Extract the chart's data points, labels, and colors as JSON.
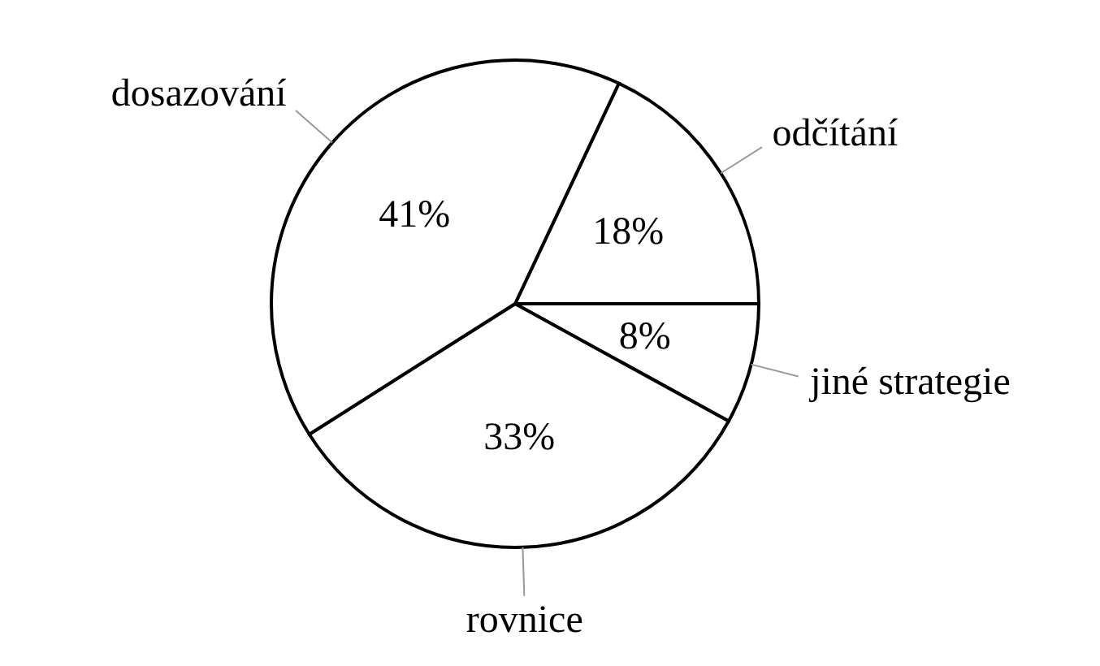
{
  "chart_data": {
    "type": "pie",
    "categories": [
      "odčítání",
      "jiné strategie",
      "rovnice",
      "dosazování"
    ],
    "values": [
      18,
      8,
      33,
      41
    ],
    "colors": [
      "#ffffff",
      "#ffffff",
      "#ffffff",
      "#ffffff"
    ],
    "value_labels": [
      "18%",
      "8%",
      "33%",
      "41%"
    ],
    "legend": false
  }
}
